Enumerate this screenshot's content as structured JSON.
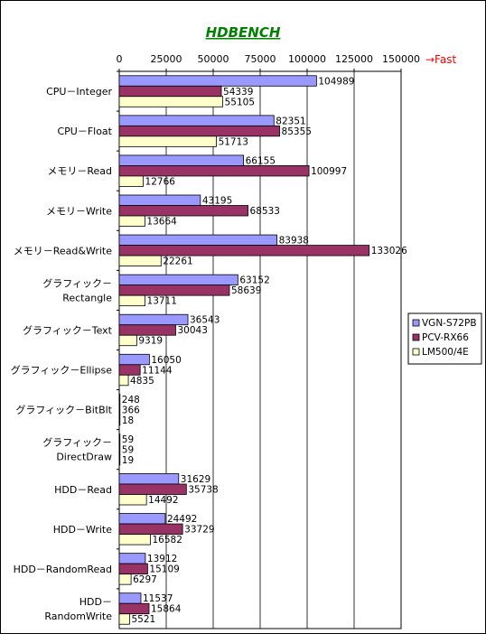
{
  "chart_data": {
    "type": "bar",
    "orientation": "horizontal",
    "title": "HDBENCH",
    "direction_note": "→Fast",
    "xlim": [
      0,
      150000
    ],
    "x_ticks": [
      0,
      25000,
      50000,
      75000,
      100000,
      125000,
      150000
    ],
    "grid": true,
    "legend_position": "right",
    "categories": [
      [
        "CPU－Integer"
      ],
      [
        "CPU－Float"
      ],
      [
        "メモリ－Read"
      ],
      [
        "メモリ－Write"
      ],
      [
        "メモリ－Read&Write"
      ],
      [
        "グラフィック－",
        "Rectangle"
      ],
      [
        "グラフィック－Text"
      ],
      [
        "グラフィック－Ellipse"
      ],
      [
        "グラフィック－BitBlt"
      ],
      [
        "グラフィック－",
        "DirectDraw"
      ],
      [
        "HDD－Read"
      ],
      [
        "HDD－Write"
      ],
      [
        "HDD－RandomRead"
      ],
      [
        "HDD－",
        "RandomWrite"
      ]
    ],
    "series": [
      {
        "name": "VGN-S72PB",
        "color": "#9999ff",
        "values": [
          104989,
          82351,
          66155,
          43195,
          83938,
          63152,
          36543,
          16050,
          248,
          59,
          31629,
          24492,
          13912,
          11537
        ]
      },
      {
        "name": "PCV-RX66",
        "color": "#993366",
        "values": [
          54339,
          85355,
          100997,
          68533,
          133026,
          58639,
          30043,
          11144,
          366,
          59,
          35738,
          33729,
          15109,
          15864
        ]
      },
      {
        "name": "LM500/4E",
        "color": "#ffffcc",
        "values": [
          55105,
          51713,
          12766,
          13664,
          22261,
          13711,
          9319,
          4835,
          18,
          19,
          14492,
          16582,
          6297,
          5521
        ]
      }
    ]
  }
}
